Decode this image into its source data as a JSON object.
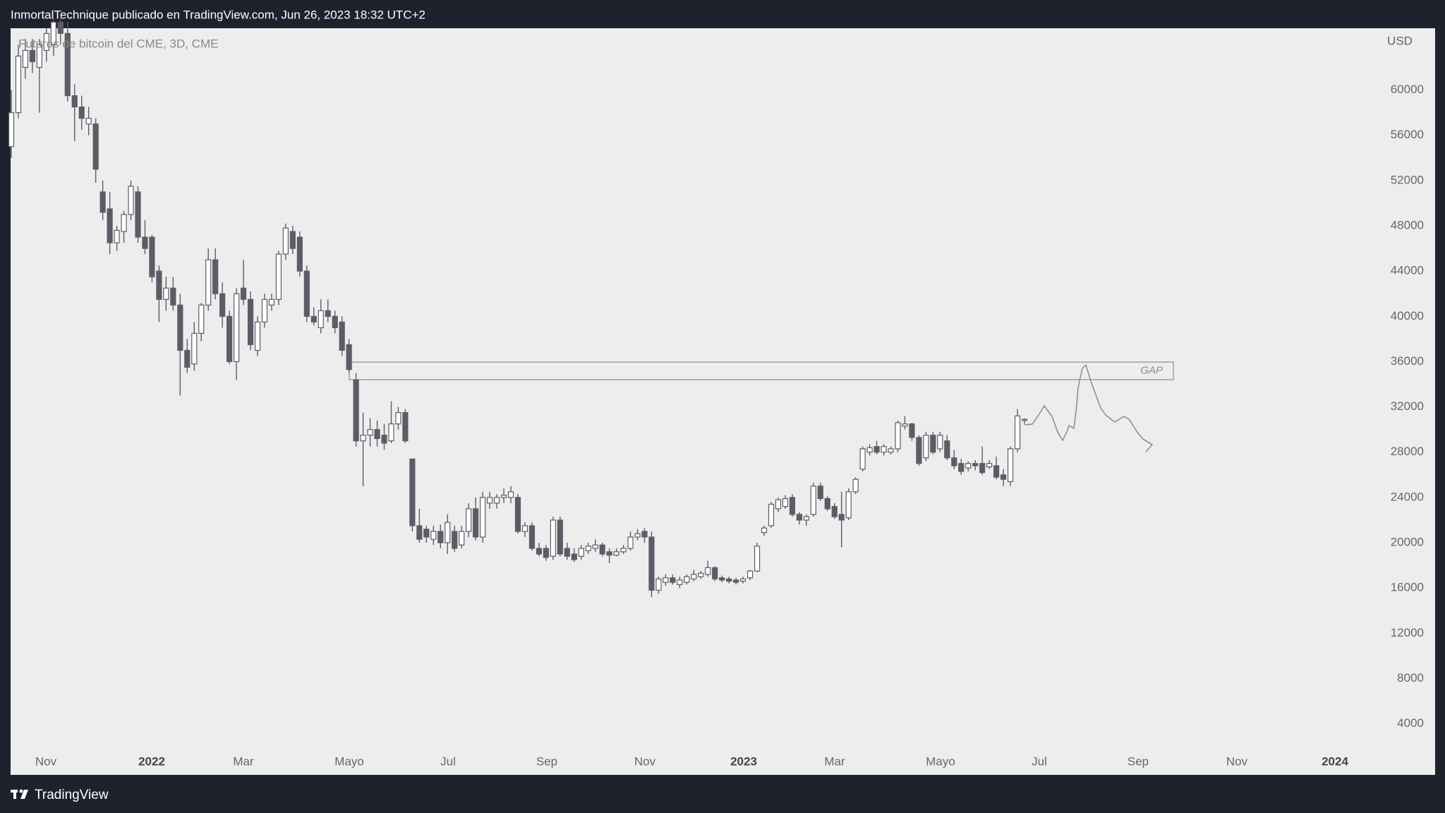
{
  "header": {
    "title": "InmortalTechnique publicado en TradingView.com, Jun 26, 2023 18:32 UTC+2"
  },
  "chart_data": {
    "type": "candlestick",
    "title": "Futuros de bitcoin del CME, 3D, CME",
    "y_unit": "USD",
    "categories": [
      "Nov",
      "2022",
      "Mar",
      "Mayo",
      "Jul",
      "Sep",
      "Nov",
      "2023",
      "Mar",
      "Mayo",
      "Jul",
      "Sep",
      "Nov",
      "2024"
    ],
    "ylim": [
      1730,
      65460
    ],
    "yticks": [
      4000,
      8000,
      12000,
      16000,
      20000,
      24000,
      28000,
      32000,
      36000,
      40000,
      44000,
      48000,
      52000,
      56000,
      60000
    ],
    "colors": {
      "up": "#ffffff",
      "down": "#5d5c66",
      "wick": "#5d5c66"
    },
    "annotations": [
      {
        "label": "GAP",
        "top": 35960,
        "bottom": 34410
      }
    ],
    "ohlc": [
      [
        55000,
        60000,
        54000,
        58000
      ],
      [
        58000,
        64000,
        57500,
        63000
      ],
      [
        62000,
        64500,
        61000,
        63500
      ],
      [
        63500,
        64500,
        61500,
        62500
      ],
      [
        62000,
        64500,
        58000,
        64000
      ],
      [
        63500,
        65500,
        62500,
        65000
      ],
      [
        64000,
        66500,
        63000,
        66000
      ],
      [
        66000,
        66500,
        64000,
        65000
      ],
      [
        65000,
        66000,
        59000,
        59500
      ],
      [
        59500,
        60500,
        55500,
        58500
      ],
      [
        58500,
        59500,
        56500,
        57500
      ],
      [
        57000,
        58500,
        56000,
        57500
      ],
      [
        57000,
        57500,
        51800,
        53000
      ],
      [
        51000,
        52000,
        48500,
        49200
      ],
      [
        49500,
        51000,
        45500,
        46500
      ],
      [
        46500,
        48000,
        45800,
        47600
      ],
      [
        47500,
        49300,
        46500,
        49000
      ],
      [
        49000,
        52000,
        48500,
        51500
      ],
      [
        51000,
        51500,
        46500,
        47000
      ],
      [
        47000,
        48500,
        45500,
        46000
      ],
      [
        47000,
        47200,
        43000,
        43500
      ],
      [
        44000,
        44500,
        39500,
        41500
      ],
      [
        41500,
        43500,
        40500,
        42500
      ],
      [
        42500,
        43500,
        40500,
        41000
      ],
      [
        41000,
        42000,
        33000,
        37000
      ],
      [
        37000,
        38000,
        35000,
        35500
      ],
      [
        35800,
        39500,
        35200,
        38500
      ],
      [
        38500,
        41200,
        37800,
        41000
      ],
      [
        41000,
        46000,
        40500,
        45000
      ],
      [
        45000,
        46000,
        41500,
        42000
      ],
      [
        42000,
        43000,
        39000,
        40000
      ],
      [
        40000,
        40500,
        35800,
        36000
      ],
      [
        36000,
        42500,
        34400,
        42000
      ],
      [
        42500,
        45000,
        41000,
        41500
      ],
      [
        41500,
        42200,
        37000,
        37500
      ],
      [
        37000,
        40000,
        36500,
        39500
      ],
      [
        39500,
        42000,
        39000,
        41500
      ],
      [
        41000,
        42000,
        40500,
        41500
      ],
      [
        41500,
        45800,
        41000,
        45500
      ],
      [
        45500,
        48200,
        45000,
        47800
      ],
      [
        47500,
        48000,
        45500,
        46000
      ],
      [
        47000,
        47500,
        43500,
        44000
      ],
      [
        44000,
        44500,
        39500,
        40000
      ],
      [
        40000,
        40800,
        39200,
        39500
      ],
      [
        39000,
        41500,
        38500,
        40500
      ],
      [
        40500,
        41500,
        39500,
        40000
      ],
      [
        40000,
        40500,
        38500,
        39000
      ],
      [
        39500,
        40000,
        36500,
        37000
      ],
      [
        37500,
        38000,
        35000,
        35300
      ],
      [
        34400,
        35000,
        28500,
        29000
      ],
      [
        29000,
        31500,
        25000,
        29500
      ],
      [
        29500,
        31000,
        28500,
        30000
      ],
      [
        30000,
        30800,
        28500,
        29200
      ],
      [
        29500,
        30500,
        28200,
        28800
      ],
      [
        29000,
        32500,
        28800,
        30500
      ],
      [
        30500,
        32000,
        30000,
        31500
      ],
      [
        31500,
        31800,
        28800,
        29000
      ],
      [
        27400,
        27400,
        21000,
        21500
      ],
      [
        21500,
        23000,
        20000,
        20300
      ],
      [
        21200,
        21500,
        20000,
        20500
      ],
      [
        20300,
        21500,
        19800,
        21000
      ],
      [
        21000,
        21600,
        19500,
        20000
      ],
      [
        20000,
        22500,
        19000,
        21800
      ],
      [
        21000,
        21500,
        19200,
        19500
      ],
      [
        19800,
        21500,
        19500,
        21000
      ],
      [
        21000,
        23500,
        20500,
        23000
      ],
      [
        23000,
        24000,
        20200,
        20500
      ],
      [
        20500,
        24500,
        20000,
        24000
      ],
      [
        23500,
        24500,
        23000,
        24000
      ],
      [
        23500,
        24300,
        23000,
        24000
      ],
      [
        24000,
        24800,
        23500,
        24200
      ],
      [
        24000,
        25000,
        23500,
        24500
      ],
      [
        24000,
        24300,
        20800,
        21000
      ],
      [
        21000,
        21800,
        20500,
        21500
      ],
      [
        21500,
        21800,
        19300,
        19500
      ],
      [
        19500,
        20000,
        18800,
        19000
      ],
      [
        19500,
        19800,
        18400,
        18700
      ],
      [
        18800,
        22300,
        18500,
        22000
      ],
      [
        22000,
        22300,
        18800,
        19000
      ],
      [
        19500,
        20000,
        18500,
        18800
      ],
      [
        19000,
        19500,
        18300,
        18500
      ],
      [
        18800,
        19800,
        18500,
        19500
      ],
      [
        19300,
        20000,
        19000,
        19700
      ],
      [
        19500,
        20300,
        19200,
        19800
      ],
      [
        19800,
        20000,
        18800,
        19000
      ],
      [
        19200,
        19500,
        18200,
        18900
      ],
      [
        18900,
        19500,
        18800,
        19200
      ],
      [
        19200,
        19800,
        19000,
        19500
      ],
      [
        19500,
        21000,
        19300,
        20500
      ],
      [
        20500,
        21200,
        20200,
        20800
      ],
      [
        21000,
        21300,
        20000,
        20500
      ],
      [
        20500,
        21000,
        15200,
        15800
      ],
      [
        15800,
        17000,
        15500,
        16800
      ],
      [
        16500,
        17200,
        16200,
        16900
      ],
      [
        16900,
        17200,
        16300,
        16500
      ],
      [
        16300,
        17000,
        16000,
        16700
      ],
      [
        16500,
        17200,
        16300,
        17000
      ],
      [
        16800,
        17600,
        16600,
        17200
      ],
      [
        17000,
        17500,
        16800,
        17300
      ],
      [
        17200,
        18400,
        17000,
        17800
      ],
      [
        17800,
        17900,
        16600,
        16800
      ],
      [
        16900,
        17100,
        16500,
        16700
      ],
      [
        16800,
        17000,
        16400,
        16600
      ],
      [
        16700,
        16900,
        16300,
        16500
      ],
      [
        16600,
        17000,
        16400,
        16800
      ],
      [
        16900,
        17600,
        16700,
        17500
      ],
      [
        17500,
        20000,
        17400,
        19700
      ],
      [
        20900,
        21500,
        20600,
        21300
      ],
      [
        21500,
        23600,
        21300,
        23400
      ],
      [
        23000,
        24000,
        22700,
        23800
      ],
      [
        23200,
        24200,
        23000,
        23900
      ],
      [
        24000,
        24300,
        22300,
        22500
      ],
      [
        22500,
        22700,
        21600,
        22000
      ],
      [
        22000,
        22500,
        21500,
        22300
      ],
      [
        22500,
        25300,
        22300,
        25000
      ],
      [
        25000,
        25300,
        23700,
        23900
      ],
      [
        23900,
        24100,
        22800,
        23000
      ],
      [
        23200,
        23500,
        22100,
        22300
      ],
      [
        22500,
        24500,
        19600,
        22000
      ],
      [
        22200,
        24800,
        22000,
        24500
      ],
      [
        24500,
        25800,
        24300,
        25600
      ],
      [
        26500,
        28500,
        26300,
        28300
      ],
      [
        28000,
        28700,
        27700,
        28400
      ],
      [
        28500,
        29000,
        27800,
        28000
      ],
      [
        28000,
        28700,
        27700,
        28500
      ],
      [
        28000,
        28500,
        27800,
        28300
      ],
      [
        28300,
        30800,
        28000,
        30600
      ],
      [
        30300,
        31200,
        30000,
        30500
      ],
      [
        30500,
        30600,
        29000,
        29300
      ],
      [
        29300,
        29500,
        26800,
        27000
      ],
      [
        27500,
        29800,
        27200,
        29500
      ],
      [
        29500,
        29800,
        27800,
        28000
      ],
      [
        28300,
        29800,
        28000,
        29500
      ],
      [
        29000,
        29500,
        27300,
        27500
      ],
      [
        27500,
        28200,
        26500,
        26800
      ],
      [
        27000,
        27400,
        26000,
        26300
      ],
      [
        26600,
        27200,
        26300,
        27000
      ],
      [
        27000,
        27300,
        26400,
        26800
      ],
      [
        27000,
        28500,
        26000,
        26200
      ],
      [
        26700,
        27300,
        26500,
        27000
      ],
      [
        26800,
        27600,
        25600,
        25800
      ],
      [
        26000,
        26500,
        25000,
        25600
      ],
      [
        25400,
        28500,
        25000,
        28300
      ],
      [
        28300,
        31800,
        28000,
        31200
      ],
      [
        30800,
        31000,
        30500,
        30900
      ]
    ]
  },
  "footer": {
    "brand": "TradingView"
  }
}
